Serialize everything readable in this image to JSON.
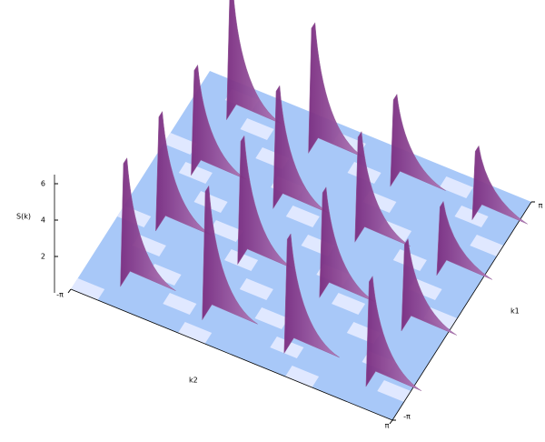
{
  "chart_data": {
    "type": "surface3d",
    "zlabel": "S(k)",
    "xlabel": "k2",
    "ylabel": "k1",
    "zlim": [
      0,
      6.5
    ],
    "zticks": [
      2,
      4,
      6
    ],
    "xlim": [
      -3.14159,
      3.14159
    ],
    "xticks": [
      {
        "value": -3.14159,
        "label": "-π"
      },
      {
        "value": 3.14159,
        "label": "π"
      }
    ],
    "ylim": [
      -3.14159,
      3.14159
    ],
    "yticks": [
      {
        "value": -3.14159,
        "label": "-π"
      },
      {
        "value": 3.14159,
        "label": "π"
      }
    ],
    "k1": [
      2.4,
      0.8,
      -0.8,
      -2.4
    ],
    "k2": [
      -2.4,
      -0.8,
      0.8,
      2.4
    ],
    "z": [
      [
        6.5,
        6.6,
        4.5,
        3.5
      ],
      [
        5.5,
        6.2,
        5.5,
        3.5
      ],
      [
        6.0,
        6.5,
        5.5,
        4.5
      ],
      [
        6.5,
        6.8,
        6.0,
        5.5
      ]
    ],
    "color": "#96609a"
  }
}
